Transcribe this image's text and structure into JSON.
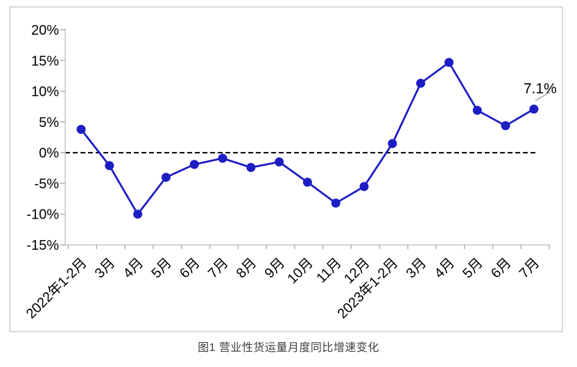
{
  "figure": {
    "caption": "图1 营业性货运量月度同比增速变化"
  },
  "chart_data": {
    "type": "line",
    "title": "",
    "xlabel": "",
    "ylabel": "",
    "categories": [
      "2022年1-2月",
      "3月",
      "4月",
      "5月",
      "6月",
      "7月",
      "8月",
      "9月",
      "10月",
      "11月",
      "12月",
      "2023年1-2月",
      "3月",
      "4月",
      "5月",
      "6月",
      "7月"
    ],
    "values": [
      3.8,
      -2.1,
      -10.0,
      -4.0,
      -1.9,
      -0.9,
      -2.4,
      -1.5,
      -4.8,
      -8.2,
      -5.5,
      1.5,
      11.3,
      14.7,
      6.9,
      4.4,
      7.1
    ],
    "unit": "%",
    "ylim": [
      -15,
      20
    ],
    "yticks": [
      20,
      15,
      10,
      5,
      0,
      -5,
      -10,
      -15
    ],
    "ytick_labels": [
      "20%",
      "15%",
      "10%",
      "5%",
      "0%",
      "-5%",
      "-10%",
      "-15%"
    ],
    "x_label_rotation_deg": 45,
    "grid": false,
    "legend": false,
    "zero_line": {
      "value": 0,
      "style": "dashed",
      "color": "#000000"
    },
    "annotation": {
      "text": "7.1%",
      "point_index": 16
    },
    "colors": {
      "series": "#1d1dc4",
      "axis_line": "#c8c8c8",
      "tick": "#b0b0b0",
      "frame_border": "#d9d9d9",
      "text": "#000000",
      "leader_line": "#a6a6a6",
      "caption_text": "#3f3f3f"
    }
  }
}
